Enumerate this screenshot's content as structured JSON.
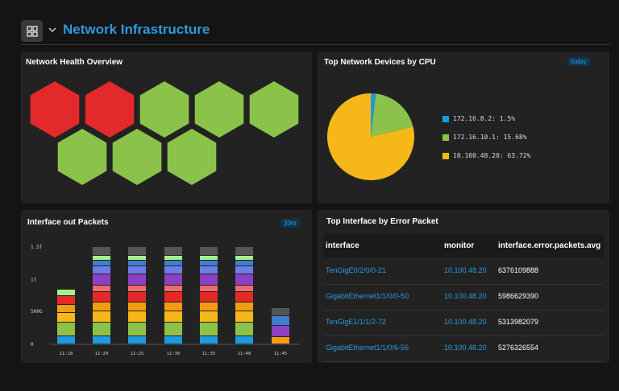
{
  "header": {
    "title": "Network Infrastructure"
  },
  "health": {
    "title": "Network Health Overview",
    "cells": [
      "#e4292a",
      "#e4292a",
      "#8bc34a",
      "#8bc34a",
      "#8bc34a",
      "#8bc34a",
      "#8bc34a",
      "#8bc34a"
    ]
  },
  "cpu": {
    "title": "Top Network Devices by CPU",
    "badge": "today",
    "legend": [
      {
        "label": "172.16.8.2: 1.5%",
        "color": "#1e9be0"
      },
      {
        "label": "172.16.10.1: 15.68%",
        "color": "#8bc34a"
      },
      {
        "label": "10.100.48.20: 63.72%",
        "color": "#f5b818"
      }
    ],
    "slices": [
      1.5,
      15.68,
      63.72
    ]
  },
  "packets": {
    "title": "Interface out Packets",
    "badge": "30m",
    "yticks": [
      "1.5T",
      "1T",
      "500G",
      "0"
    ],
    "xticks": [
      "11:18",
      "11:20",
      "11:25",
      "11:30",
      "11:35",
      "11:40",
      "11:45"
    ],
    "segment_colors": [
      "#1e9be0",
      "#8bc34a",
      "#f5b818",
      "#f39c12",
      "#e4292a",
      "#ef6c6c",
      "#8e3fc4",
      "#6e7ee8",
      "#3e7fd0",
      "#a5f08a",
      "#555555"
    ]
  },
  "errors": {
    "title": "Top Interface by Error Packet",
    "headers": [
      "interface",
      "monitor",
      "interface.error.packets.avg"
    ],
    "rows": [
      {
        "iface": "TenGigE0/2/0/0-21",
        "monitor": "10.100.48.20",
        "value": "6376109888"
      },
      {
        "iface": "GigabitEthernet1/1/0/0-50",
        "monitor": "10.100.48.20",
        "value": "5986629390"
      },
      {
        "iface": "TenGigE1/1/1/2-72",
        "monitor": "10.100.48.20",
        "value": "5313982079"
      },
      {
        "iface": "GigabitEthernet1/1/0/6-56",
        "monitor": "10.100.48.20",
        "value": "5276326554"
      }
    ]
  }
}
